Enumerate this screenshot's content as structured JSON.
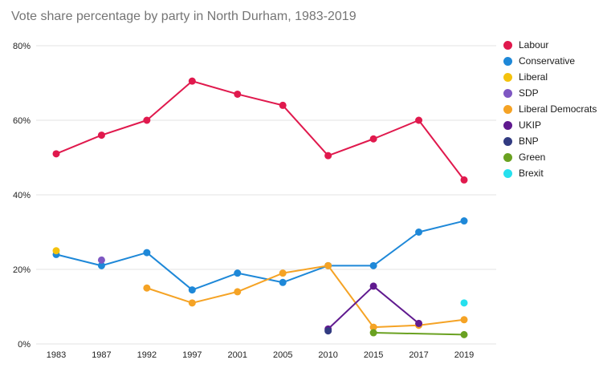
{
  "title": "Vote share percentage by party in North Durham, 1983-2019",
  "chart_data": {
    "type": "line",
    "categories": [
      "1983",
      "1987",
      "1992",
      "1997",
      "2001",
      "2005",
      "2010",
      "2015",
      "2017",
      "2019"
    ],
    "title": "Vote share percentage by party in North Durham, 1983-2019",
    "xlabel": "",
    "ylabel": "",
    "ylim": [
      0,
      80
    ],
    "yticks": [
      "0%",
      "20%",
      "40%",
      "60%",
      "80%"
    ],
    "ytick_values": [
      0,
      20,
      40,
      60,
      80
    ],
    "grid": true,
    "legend_position": "right",
    "background_color": "#ffffff",
    "gridline_color": "#e3e3e3",
    "axis_text_color": "#222222",
    "title_color": "#757575",
    "series": [
      {
        "name": "Labour",
        "color": "#e0194d",
        "values": [
          51,
          56,
          60,
          70.5,
          67,
          64,
          50.5,
          55,
          60,
          44
        ]
      },
      {
        "name": "Conservative",
        "color": "#1e88d8",
        "values": [
          24,
          21,
          24.5,
          14.5,
          19,
          16.5,
          21,
          21,
          30,
          33
        ]
      },
      {
        "name": "Liberal",
        "color": "#f4c20d",
        "values": [
          25,
          null,
          null,
          null,
          null,
          null,
          null,
          null,
          null,
          null
        ]
      },
      {
        "name": "SDP",
        "color": "#7e57c2",
        "values": [
          null,
          22.5,
          null,
          null,
          null,
          null,
          null,
          null,
          null,
          null
        ]
      },
      {
        "name": "Liberal Democrats",
        "color": "#f5a325",
        "values": [
          null,
          null,
          15,
          11,
          14,
          19,
          21,
          4.5,
          5,
          6.5
        ]
      },
      {
        "name": "UKIP",
        "color": "#601a8f",
        "values": [
          null,
          null,
          null,
          null,
          null,
          null,
          4,
          15.5,
          5.5,
          null
        ]
      },
      {
        "name": "BNP",
        "color": "#323b81",
        "values": [
          null,
          null,
          null,
          null,
          null,
          null,
          3.5,
          null,
          null,
          null
        ]
      },
      {
        "name": "Green",
        "color": "#6aa121",
        "values": [
          null,
          null,
          null,
          null,
          null,
          null,
          null,
          3,
          null,
          2.5
        ]
      },
      {
        "name": "Brexit",
        "color": "#26e0ee",
        "values": [
          null,
          null,
          null,
          null,
          null,
          null,
          null,
          null,
          null,
          11
        ]
      }
    ]
  }
}
